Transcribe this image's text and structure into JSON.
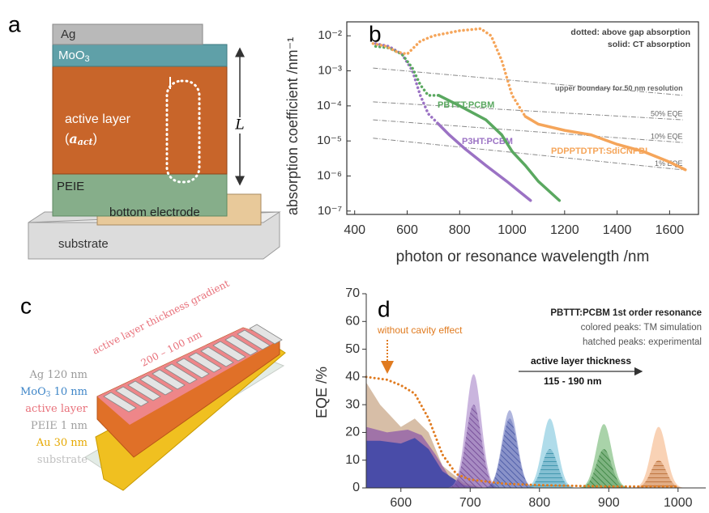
{
  "panel_a": {
    "label": "a",
    "ag": "Ag",
    "moo3": [
      "MoO",
      "3"
    ],
    "active": "active layer",
    "active_symbol": [
      "(",
      "a",
      "act",
      ")"
    ],
    "peie": "PEIE",
    "bottom": "bottom electrode",
    "substrate": "substrate",
    "thickness": "L"
  },
  "panel_c": {
    "label": "c",
    "gradient": "active layer thickness gradient",
    "range": "200 – 100 nm",
    "layers": [
      {
        "text": [
          "Ag 120 nm"
        ],
        "color": "#9a9a9a"
      },
      {
        "text": [
          "MoO",
          "3",
          " 10 nm"
        ],
        "color": "#3f86c8"
      },
      {
        "text": [
          "active layer"
        ],
        "color": "#e8707a"
      },
      {
        "text": [
          "PEIE 1 nm"
        ],
        "color": "#a0a0a0"
      },
      {
        "text": [
          "Au 30 nm"
        ],
        "color": "#e6a800"
      },
      {
        "text": [
          "substrate"
        ],
        "color": "#c0c0c0"
      }
    ]
  },
  "chart_data": [
    {
      "type": "line",
      "label": "b",
      "log_y": true,
      "ylabel": "absorption coefficient /nm⁻¹",
      "xlabel": "photon or resonance wavelength /nm",
      "xlim": [
        370,
        1710
      ],
      "ylim": [
        8e-08,
        0.025
      ],
      "xticks": [
        400,
        600,
        800,
        1000,
        1200,
        1400,
        1600
      ],
      "yticks": [
        {
          "value": 1e-07,
          "label": "10⁻⁷"
        },
        {
          "value": 1e-06,
          "label": "10⁻⁶"
        },
        {
          "value": 1e-05,
          "label": "10⁻⁵"
        },
        {
          "value": 0.0001,
          "label": "10⁻⁴"
        },
        {
          "value": 0.001,
          "label": "10⁻³"
        },
        {
          "value": 0.01,
          "label": "10⁻²"
        }
      ],
      "annotations": [
        "dotted: above gap absorption",
        "solid: CT absorption"
      ],
      "series": [
        {
          "name": "P3HT:PCBM",
          "color": "#9b72c4",
          "dotted": {
            "x": [
              480,
              530,
              580,
              620,
              650,
              680,
              720
            ],
            "values": [
              0.006,
              0.005,
              0.003,
              0.001,
              0.0002,
              6e-05,
              3e-05
            ]
          },
          "solid": {
            "x": [
              720,
              760,
              820,
              900,
              980,
              1070
            ],
            "values": [
              3e-05,
              1.5e-05,
              6e-06,
              2e-06,
              7e-07,
              2e-07
            ]
          }
        },
        {
          "name": "PBTTT:PCBM",
          "color": "#5aa860",
          "dotted": {
            "x": [
              480,
              530,
              580,
              620,
              650,
              680,
              720
            ],
            "values": [
              0.005,
              0.0045,
              0.003,
              0.0012,
              0.0004,
              0.0002,
              0.0002
            ]
          },
          "solid": {
            "x": [
              720,
              800,
              900,
              960,
              1000,
              1050,
              1100,
              1180
            ],
            "values": [
              0.0002,
              0.0001,
              4e-05,
              1.5e-05,
              5e-06,
              2e-06,
              7e-07,
              2e-07
            ]
          }
        },
        {
          "name": "PDPPTDTPT:SdiCNPBI",
          "color": "#f5a55a",
          "dotted": {
            "x": [
              470,
              520,
              560,
              600,
              650,
              700,
              800,
              880,
              920,
              960,
              1000,
              1050
            ],
            "values": [
              0.006,
              0.005,
              0.0035,
              0.003,
              0.007,
              0.01,
              0.014,
              0.016,
              0.01,
              0.002,
              0.0002,
              5e-05
            ]
          },
          "solid": {
            "x": [
              1050,
              1100,
              1200,
              1300,
              1400,
              1500,
              1600,
              1660
            ],
            "values": [
              5e-05,
              3e-05,
              2e-05,
              1.5e-05,
              8e-06,
              5e-06,
              2.5e-06,
              1.5e-06
            ]
          }
        }
      ],
      "reference_lines": [
        {
          "name": "upper boundary for 50 nm resolution",
          "x": [
            470,
            1650
          ],
          "values": [
            0.0012,
            0.0002
          ]
        },
        {
          "name": "50% EQE",
          "x": [
            470,
            1650
          ],
          "values": [
            0.00013,
            4e-05
          ]
        },
        {
          "name": "10% EQE",
          "x": [
            470,
            1650
          ],
          "values": [
            4e-05,
            9e-06
          ]
        },
        {
          "name": "1% EQE",
          "x": [
            470,
            1650
          ],
          "values": [
            1.2e-05,
            1.5e-06
          ]
        }
      ]
    },
    {
      "type": "area",
      "label": "d",
      "ylabel": "EQE /%",
      "xlim": [
        550,
        1040
      ],
      "ylim": [
        0,
        70
      ],
      "xticks": [
        600,
        700,
        800,
        900,
        1000
      ],
      "yticks": [
        0,
        10,
        20,
        30,
        40,
        50,
        60,
        70
      ],
      "annotations": {
        "title": "PBTTT:PCBM 1st order resonance",
        "simulation": "colored peaks: TM simulation",
        "experiment": "hatched peaks: experimental",
        "thickness": "active layer thickness",
        "thickness_range": "115 - 190 nm",
        "no_cavity": "without cavity effect"
      },
      "background": [
        {
          "color": "#c9a88a",
          "x": [
            550,
            570,
            600,
            620,
            640,
            660,
            690,
            720
          ],
          "values": [
            38,
            30,
            22,
            25,
            20,
            8,
            2,
            0
          ]
        },
        {
          "color": "#8e5aa8",
          "x": [
            550,
            580,
            610,
            630,
            650,
            670,
            700
          ],
          "values": [
            22,
            20,
            21,
            19,
            12,
            4,
            0
          ]
        },
        {
          "color": "#2c3fa8",
          "x": [
            550,
            570,
            600,
            620,
            640,
            660,
            690,
            720
          ],
          "values": [
            17,
            17,
            16,
            18,
            14,
            6,
            1,
            0
          ]
        }
      ],
      "simulated_peaks": {
        "x": [
          705,
          757,
          815,
          893,
          972
        ],
        "values": [
          41,
          28,
          25,
          23,
          22
        ],
        "colors": [
          "#a784c8",
          "#7b86c8",
          "#7cc4dc",
          "#6fb56f",
          "#f5b483"
        ]
      },
      "experimental_peaks": {
        "x": [
          705,
          757,
          815,
          893,
          972
        ],
        "values": [
          30,
          25,
          14,
          14,
          10
        ],
        "colors": [
          "#6b3f90",
          "#3f4fa0",
          "#2e8aa5",
          "#2f7a35",
          "#b5652a"
        ]
      },
      "no_cavity": {
        "color": "#e07b20",
        "x": [
          550,
          580,
          600,
          620,
          640,
          660,
          680,
          700,
          750,
          800,
          900,
          1000
        ],
        "values": [
          40,
          39,
          37,
          34,
          25,
          12,
          5,
          3,
          1.5,
          1,
          0.5,
          0.5
        ]
      }
    }
  ]
}
